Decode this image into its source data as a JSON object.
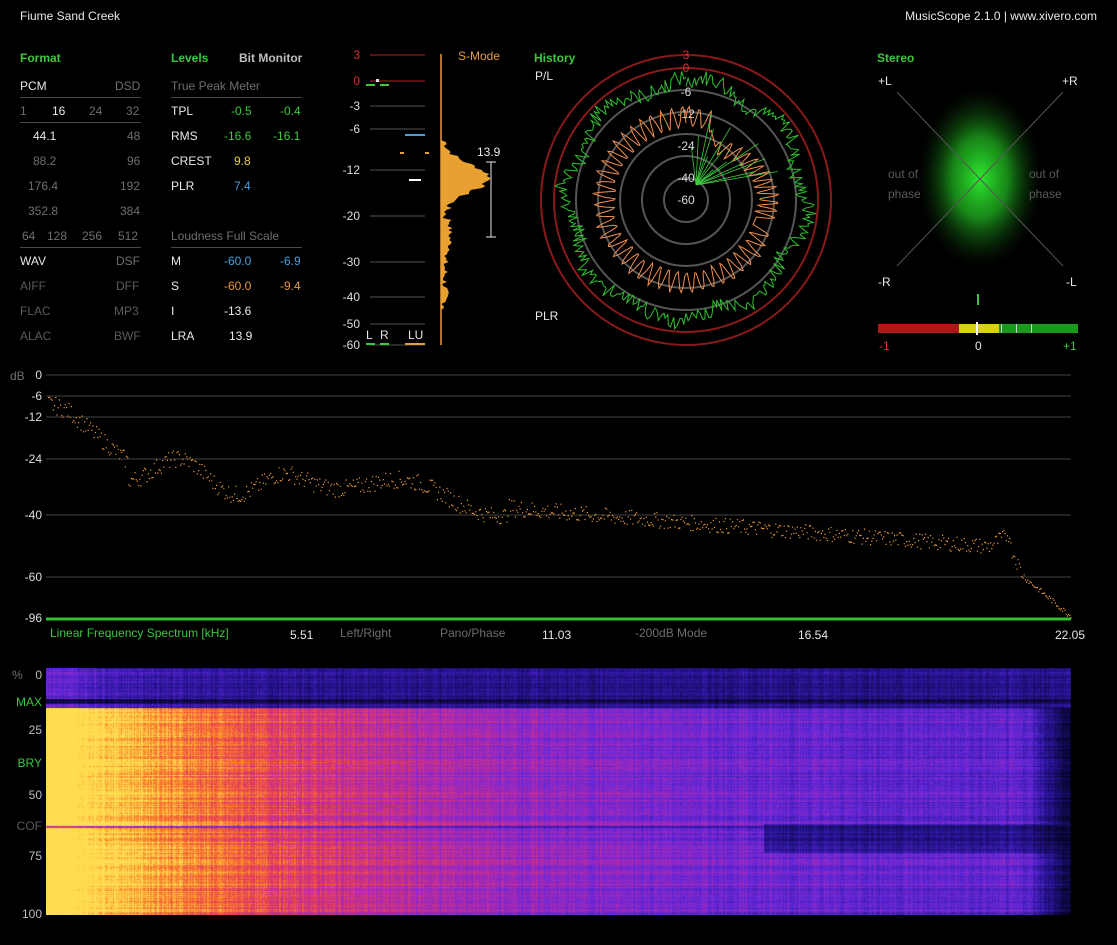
{
  "window": {
    "title": "Fiume Sand Creek",
    "app_info": "MusicScope 2.1.0 | www.xivero.com"
  },
  "format": {
    "header": "Format",
    "pcm_label": "PCM",
    "dsd_label": "DSD",
    "bits": [
      "1",
      "16",
      "24",
      "32"
    ],
    "rates": [
      [
        "44.1",
        "48"
      ],
      [
        "88.2",
        "96"
      ],
      [
        "176.4",
        "192"
      ],
      [
        "352.8",
        "384"
      ]
    ],
    "dsd_rates": [
      "64",
      "128",
      "256",
      "512"
    ],
    "containers": [
      [
        "WAV",
        "DSF"
      ],
      [
        "AIFF",
        "DFF"
      ],
      [
        "FLAC",
        "MP3"
      ],
      [
        "ALAC",
        "BWF"
      ]
    ]
  },
  "levels": {
    "header": "Levels",
    "bit_monitor": "Bit Monitor",
    "tpm_title": "True Peak Meter",
    "rows": [
      {
        "label": "TPL",
        "l": "-0.5",
        "r": "-0.4"
      },
      {
        "label": "RMS",
        "l": "-16.6",
        "r": "-16.1"
      },
      {
        "label": "CREST",
        "l": "9.8"
      },
      {
        "label": "PLR",
        "l": "7.4"
      }
    ],
    "lfs_title": "Loudness Full Scale",
    "lfs_rows": [
      {
        "label": "M",
        "a": "-60.0",
        "b": "-6.9"
      },
      {
        "label": "S",
        "a": "-60.0",
        "b": "-9.4"
      },
      {
        "label": "I",
        "a": "-13.6"
      },
      {
        "label": "LRA",
        "a": "13.9"
      }
    ]
  },
  "meter": {
    "ticks": [
      "3",
      "0",
      "-3",
      "-6",
      "-12",
      "-20",
      "-30",
      "-40",
      "-50",
      "-60"
    ],
    "smode": "S-Mode",
    "lra_value": "13.9",
    "bottom_labels": [
      "L",
      "R",
      "LU"
    ]
  },
  "history": {
    "header": "History",
    "pl_label": "P/L",
    "plr_label": "PLR",
    "rings": [
      "3",
      "0",
      "-6",
      "-12",
      "-24",
      "-40",
      "-60"
    ]
  },
  "stereo": {
    "header": "Stereo",
    "corners": [
      "+L",
      "+R",
      "-R",
      "-L"
    ],
    "oop_left": [
      "out of",
      "phase"
    ],
    "oop_right": [
      "out of",
      "phase"
    ],
    "correlation": {
      "labels": [
        "-1",
        "0",
        "+1"
      ],
      "value": 0
    }
  },
  "spectrum": {
    "db_label": "dB",
    "db_ticks": [
      "0",
      "-6",
      "-12",
      "-24",
      "-40",
      "-60",
      "-96"
    ],
    "title": "Linear Frequency Spectrum [kHz]",
    "freq_ticks": [
      "5.51",
      "11.03",
      "16.54",
      "22.05"
    ],
    "mode_buttons": [
      "Left/Right",
      "Pano/Phase",
      "-200dB Mode"
    ]
  },
  "spectrogram": {
    "pct_label": "%",
    "left_labels": [
      {
        "t": "0",
        "c": "grey"
      },
      {
        "t": "MAX",
        "c": "green"
      },
      {
        "t": "25",
        "c": "grey"
      },
      {
        "t": "BRY",
        "c": "green"
      },
      {
        "t": "50",
        "c": "grey"
      },
      {
        "t": "COF",
        "c": "dgrey"
      },
      {
        "t": "75",
        "c": "grey"
      },
      {
        "t": "100",
        "c": "grey"
      }
    ]
  },
  "colors": {
    "accent_green": "#3cc83c",
    "orange": "#e89a3c",
    "blue": "#4a9fd8",
    "red": "#d02020"
  }
}
